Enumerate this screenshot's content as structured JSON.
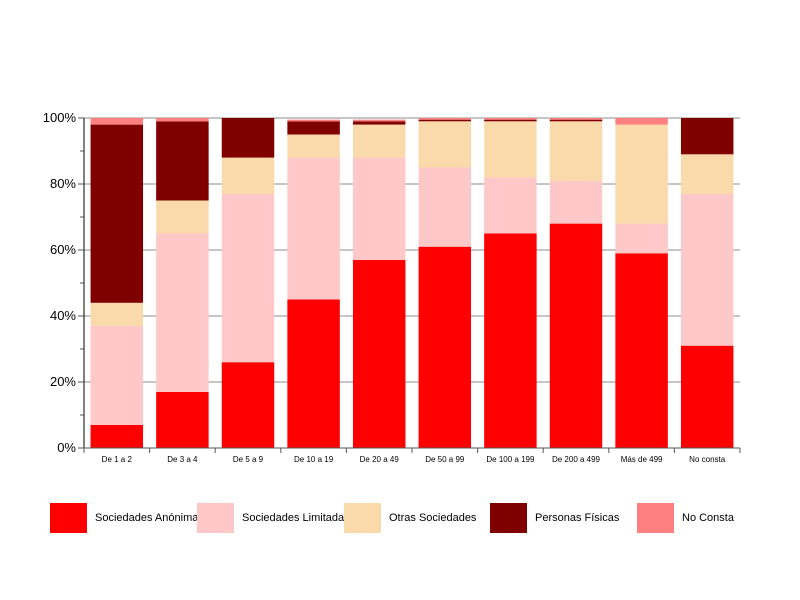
{
  "chart_data": {
    "type": "bar",
    "stacked": true,
    "title": "",
    "xlabel": "",
    "ylabel": "",
    "ylim": [
      0,
      100
    ],
    "y_ticks": [
      "0%",
      "20%",
      "40%",
      "60%",
      "80%",
      "100%"
    ],
    "y_tick_values": [
      0,
      20,
      40,
      60,
      80,
      100
    ],
    "grid": true,
    "legend_position": "bottom",
    "categories": [
      "De 1 a 2",
      "De 3 a 4",
      "De 5 a 9",
      "De 10 a 19",
      "De 20 a 49",
      "De 50 a 99",
      "De 100 a 199",
      "De 200 a 499",
      "Más de 499",
      "No consta"
    ],
    "series": [
      {
        "name": "Sociedades Anónimas",
        "color": "#ff0000",
        "values": [
          7,
          17,
          26,
          45,
          57,
          61,
          65,
          68,
          59,
          31
        ]
      },
      {
        "name": "Sociedades Limitadas",
        "color": "#ffc8c8",
        "values": [
          30,
          48,
          51,
          43,
          31,
          24,
          17,
          13,
          9,
          46
        ]
      },
      {
        "name": "Otras Sociedades",
        "color": "#fad9ab",
        "values": [
          7,
          10,
          11,
          7,
          10,
          14,
          17,
          18,
          30,
          12
        ]
      },
      {
        "name": "Personas Físicas",
        "color": "#800000",
        "values": [
          54,
          24,
          12,
          4,
          1,
          0.5,
          0.5,
          0.5,
          0,
          11
        ]
      },
      {
        "name": "No Consta",
        "color": "#ff8080",
        "values": [
          2,
          1,
          0.5,
          0.5,
          0.5,
          0.5,
          0.5,
          0.5,
          2,
          0
        ]
      }
    ]
  },
  "legend": {
    "items": [
      {
        "label": "Sociedades Anónimas",
        "color": "#ff0000"
      },
      {
        "label": "Sociedades Limitadas",
        "color": "#ffc8c8"
      },
      {
        "label": "Otras Sociedades",
        "color": "#fad9ab"
      },
      {
        "label": "Personas Físicas",
        "color": "#800000"
      },
      {
        "label": "No Consta",
        "color": "#ff8080"
      }
    ]
  }
}
